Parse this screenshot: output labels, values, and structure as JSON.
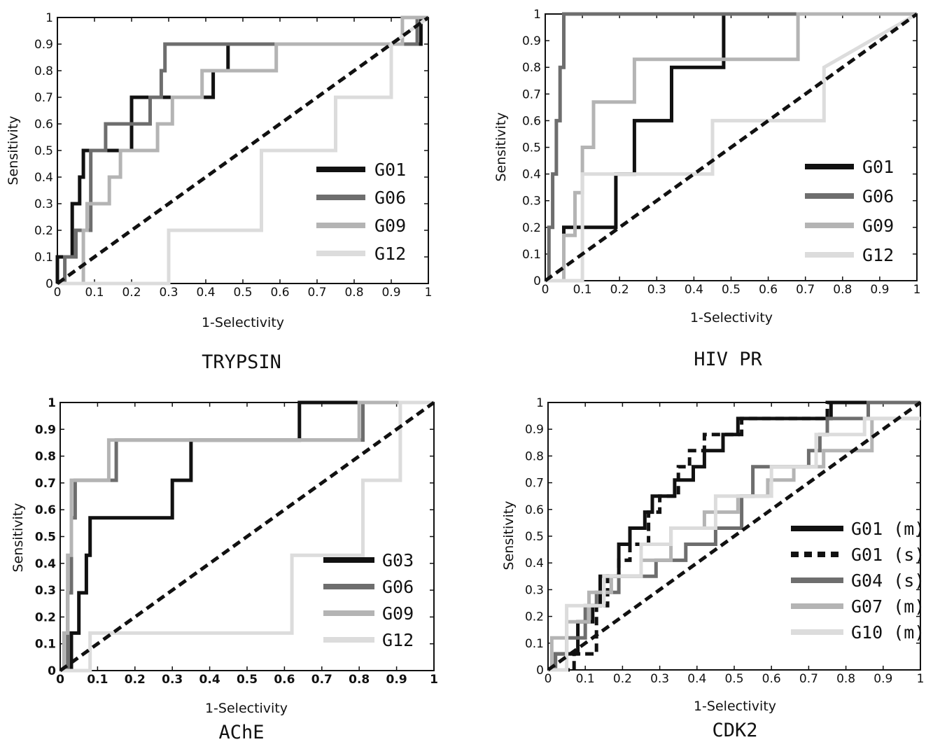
{
  "figure": {
    "background": "#ffffff",
    "line_colors": {
      "black": "#111111",
      "dark_gray": "#6e6e6e",
      "light_gray": "#b4b4b4",
      "faint_gray": "#dcdcdc"
    }
  },
  "chart_data": [
    {
      "type": "line",
      "caption": "TRYPSIN",
      "xlabel": "1-Selectivity",
      "ylabel": "Sensitivity",
      "xlim": [
        0,
        1
      ],
      "ylim": [
        0,
        1
      ],
      "xticks": [
        "0",
        "0.1",
        "0.2",
        "0.3",
        "0.4",
        "0.5",
        "0.6",
        "0.7",
        "0.8",
        "0.9",
        "1"
      ],
      "yticks": [
        "0",
        "0.1",
        "0.2",
        "0.3",
        "0.4",
        "0.5",
        "0.6",
        "0.7",
        "0.8",
        "0.9",
        "1"
      ],
      "grid": false,
      "legend_position": "lower-right",
      "series": [
        {
          "name": "G01",
          "color": "#111111",
          "dash": false,
          "x": [
            0,
            0,
            0.04,
            0.04,
            0.06,
            0.06,
            0.07,
            0.07,
            0.2,
            0.2,
            0.29,
            0.29,
            0.42,
            0.42,
            0.46,
            0.46,
            0.98,
            0.98,
            1
          ],
          "y": [
            0,
            0.1,
            0.1,
            0.3,
            0.3,
            0.4,
            0.4,
            0.5,
            0.5,
            0.7,
            0.7,
            0.7,
            0.7,
            0.8,
            0.8,
            0.9,
            0.9,
            1,
            1
          ]
        },
        {
          "name": "G06",
          "color": "#6e6e6e",
          "dash": false,
          "x": [
            0,
            0.02,
            0.02,
            0.05,
            0.05,
            0.09,
            0.09,
            0.13,
            0.13,
            0.25,
            0.25,
            0.28,
            0.28,
            0.29,
            0.29,
            0.97,
            0.97,
            1
          ],
          "y": [
            0,
            0,
            0.1,
            0.1,
            0.2,
            0.2,
            0.5,
            0.5,
            0.6,
            0.6,
            0.7,
            0.7,
            0.8,
            0.8,
            0.9,
            0.9,
            1,
            1
          ]
        },
        {
          "name": "G09",
          "color": "#b4b4b4",
          "dash": false,
          "x": [
            0,
            0.07,
            0.07,
            0.08,
            0.08,
            0.14,
            0.14,
            0.17,
            0.17,
            0.27,
            0.27,
            0.31,
            0.31,
            0.39,
            0.39,
            0.45,
            0.45,
            0.59,
            0.59,
            0.93,
            0.93,
            1
          ],
          "y": [
            0,
            0,
            0.2,
            0.2,
            0.3,
            0.3,
            0.4,
            0.4,
            0.5,
            0.5,
            0.6,
            0.6,
            0.7,
            0.7,
            0.8,
            0.8,
            0.8,
            0.8,
            0.9,
            0.9,
            1,
            1
          ]
        },
        {
          "name": "G12",
          "color": "#dcdcdc",
          "dash": false,
          "x": [
            0,
            0.3,
            0.3,
            0.55,
            0.55,
            0.75,
            0.75,
            0.9,
            0.9,
            1
          ],
          "y": [
            0,
            0,
            0.2,
            0.2,
            0.5,
            0.5,
            0.7,
            0.7,
            0.9,
            1
          ]
        },
        {
          "name": "",
          "color": "#111111",
          "dash": true,
          "x": [
            0,
            1
          ],
          "y": [
            0,
            1
          ]
        }
      ]
    },
    {
      "type": "line",
      "caption": "HIV PR",
      "xlabel": "1-Selectivity",
      "ylabel": "Sensitivity",
      "xlim": [
        0,
        1
      ],
      "ylim": [
        0,
        1
      ],
      "xticks": [
        "0",
        "0.1",
        "0.2",
        "0.3",
        "0.4",
        "0.5",
        "0.6",
        "0.7",
        "0.8",
        "0.9",
        "1"
      ],
      "yticks": [
        "0",
        "0.1",
        "0.2",
        "0.3",
        "0.4",
        "0.5",
        "0.6",
        "0.7",
        "0.8",
        "0.9",
        "1"
      ],
      "grid": false,
      "legend_position": "lower-right",
      "series": [
        {
          "name": "G01",
          "color": "#111111",
          "dash": false,
          "x": [
            0,
            0.05,
            0.05,
            0.19,
            0.19,
            0.24,
            0.24,
            0.34,
            0.34,
            0.48,
            0.48,
            1
          ],
          "y": [
            0,
            0,
            0.2,
            0.2,
            0.4,
            0.4,
            0.6,
            0.6,
            0.8,
            0.8,
            1,
            1
          ]
        },
        {
          "name": "G06",
          "color": "#6e6e6e",
          "dash": false,
          "x": [
            0,
            0.01,
            0.01,
            0.02,
            0.02,
            0.03,
            0.03,
            0.04,
            0.04,
            0.05,
            0.05,
            1
          ],
          "y": [
            0,
            0,
            0.2,
            0.2,
            0.4,
            0.4,
            0.6,
            0.6,
            0.8,
            0.8,
            1,
            1
          ]
        },
        {
          "name": "G09",
          "color": "#b4b4b4",
          "dash": false,
          "x": [
            0,
            0.05,
            0.05,
            0.08,
            0.08,
            0.1,
            0.1,
            0.13,
            0.13,
            0.24,
            0.24,
            0.35,
            0.35,
            0.68,
            0.68,
            1
          ],
          "y": [
            0,
            0,
            0.17,
            0.17,
            0.33,
            0.33,
            0.5,
            0.5,
            0.67,
            0.67,
            0.83,
            0.83,
            0.83,
            0.83,
            1,
            1
          ]
        },
        {
          "name": "G12",
          "color": "#dcdcdc",
          "dash": false,
          "x": [
            0,
            0.1,
            0.1,
            0.45,
            0.45,
            0.75,
            0.75,
            1
          ],
          "y": [
            0,
            0,
            0.4,
            0.4,
            0.6,
            0.6,
            0.8,
            1
          ]
        },
        {
          "name": "",
          "color": "#111111",
          "dash": true,
          "x": [
            0,
            1
          ],
          "y": [
            0,
            1
          ]
        }
      ]
    },
    {
      "type": "line",
      "caption": "AChE",
      "xlabel": "1-Selectivity",
      "ylabel": "Sensitivity",
      "xlim": [
        0,
        1
      ],
      "ylim": [
        0,
        1
      ],
      "xticks": [
        "0",
        "0.1",
        "0.2",
        "0.3",
        "0.4",
        "0.5",
        "0.6",
        "0.7",
        "0.8",
        "0.9",
        "1"
      ],
      "yticks": [
        "0",
        "0.1",
        "0.2",
        "0.3",
        "0.4",
        "0.5",
        "0.6",
        "0.7",
        "0.8",
        "0.9",
        "1"
      ],
      "grid": false,
      "legend_position": "lower-right",
      "series": [
        {
          "name": "G03",
          "color": "#111111",
          "dash": false,
          "x": [
            0,
            0.03,
            0.03,
            0.05,
            0.05,
            0.07,
            0.07,
            0.08,
            0.08,
            0.11,
            0.11,
            0.3,
            0.3,
            0.35,
            0.35,
            0.49,
            0.49,
            0.64,
            0.64,
            1
          ],
          "y": [
            0,
            0,
            0.14,
            0.14,
            0.29,
            0.29,
            0.43,
            0.43,
            0.57,
            0.57,
            0.57,
            0.57,
            0.71,
            0.71,
            0.86,
            0.86,
            0.86,
            0.86,
            1,
            1
          ]
        },
        {
          "name": "G06",
          "color": "#6e6e6e",
          "dash": false,
          "x": [
            0,
            0.02,
            0.02,
            0.03,
            0.03,
            0.04,
            0.04,
            0.15,
            0.15,
            0.81,
            0.81,
            1
          ],
          "y": [
            0,
            0,
            0.29,
            0.29,
            0.57,
            0.57,
            0.71,
            0.71,
            0.86,
            0.86,
            1,
            1
          ]
        },
        {
          "name": "G09",
          "color": "#b4b4b4",
          "dash": false,
          "x": [
            0,
            0.01,
            0.01,
            0.02,
            0.02,
            0.03,
            0.03,
            0.13,
            0.13,
            0.39,
            0.39,
            0.8,
            0.8,
            1
          ],
          "y": [
            0,
            0,
            0.14,
            0.14,
            0.43,
            0.43,
            0.71,
            0.71,
            0.86,
            0.86,
            0.86,
            0.86,
            1,
            1
          ]
        },
        {
          "name": "G12",
          "color": "#dcdcdc",
          "dash": false,
          "x": [
            0,
            0.08,
            0.08,
            0.62,
            0.62,
            0.81,
            0.81,
            0.91,
            0.91,
            1
          ],
          "y": [
            0,
            0,
            0.14,
            0.14,
            0.43,
            0.43,
            0.71,
            0.71,
            1,
            1
          ]
        },
        {
          "name": "",
          "color": "#111111",
          "dash": true,
          "x": [
            0,
            1
          ],
          "y": [
            0,
            1
          ]
        }
      ]
    },
    {
      "type": "line",
      "caption": "CDK2",
      "xlabel": "1-Selectivity",
      "ylabel": "Sensitivity",
      "xlim": [
        0,
        1
      ],
      "ylim": [
        0,
        1
      ],
      "xticks": [
        "0",
        "0.1",
        "0.2",
        "0.3",
        "0.4",
        "0.5",
        "0.6",
        "0.7",
        "0.8",
        "0.9",
        "1"
      ],
      "yticks": [
        "0",
        "0.1",
        "0.2",
        "0.3",
        "0.4",
        "0.5",
        "0.6",
        "0.7",
        "0.8",
        "0.9",
        "1"
      ],
      "grid": false,
      "legend_position": "lower-right",
      "series": [
        {
          "name": "G01 (m)",
          "color": "#111111",
          "dash": false,
          "x": [
            0,
            0.02,
            0.02,
            0.08,
            0.08,
            0.12,
            0.12,
            0.14,
            0.14,
            0.19,
            0.19,
            0.22,
            0.22,
            0.26,
            0.26,
            0.28,
            0.28,
            0.34,
            0.34,
            0.39,
            0.39,
            0.42,
            0.42,
            0.47,
            0.47,
            0.51,
            0.51,
            0.56,
            0.56,
            0.67,
            0.67,
            0.76,
            0.76,
            1
          ],
          "y": [
            0,
            0,
            0.06,
            0.06,
            0.18,
            0.18,
            0.24,
            0.24,
            0.35,
            0.35,
            0.47,
            0.47,
            0.53,
            0.53,
            0.59,
            0.59,
            0.65,
            0.65,
            0.71,
            0.71,
            0.76,
            0.76,
            0.82,
            0.82,
            0.88,
            0.88,
            0.94,
            0.94,
            0.94,
            0.94,
            0.94,
            0.94,
            1,
            1
          ]
        },
        {
          "name": "G01 (s)",
          "color": "#111111",
          "dash": true,
          "x": [
            0,
            0.07,
            0.07,
            0.13,
            0.13,
            0.16,
            0.16,
            0.19,
            0.19,
            0.22,
            0.22,
            0.27,
            0.27,
            0.3,
            0.3,
            0.35,
            0.35,
            0.38,
            0.38,
            0.42,
            0.42,
            0.52,
            0.52,
            0.61,
            0.61,
            0.75,
            0.75,
            1
          ],
          "y": [
            0,
            0,
            0.06,
            0.06,
            0.24,
            0.24,
            0.35,
            0.35,
            0.41,
            0.41,
            0.47,
            0.47,
            0.59,
            0.59,
            0.65,
            0.65,
            0.76,
            0.76,
            0.82,
            0.82,
            0.88,
            0.88,
            0.94,
            0.94,
            0.94,
            0.94,
            1,
            1
          ]
        },
        {
          "name": "G04 (s)",
          "color": "#6e6e6e",
          "dash": false,
          "x": [
            0,
            0.02,
            0.02,
            0.05,
            0.05,
            0.1,
            0.1,
            0.13,
            0.13,
            0.19,
            0.19,
            0.29,
            0.29,
            0.37,
            0.37,
            0.45,
            0.45,
            0.52,
            0.52,
            0.55,
            0.55,
            0.7,
            0.7,
            0.73,
            0.73,
            0.75,
            0.75,
            0.86,
            0.86,
            1
          ],
          "y": [
            0,
            0,
            0.06,
            0.06,
            0.12,
            0.12,
            0.24,
            0.24,
            0.29,
            0.29,
            0.35,
            0.35,
            0.41,
            0.41,
            0.47,
            0.47,
            0.53,
            0.53,
            0.65,
            0.65,
            0.76,
            0.76,
            0.82,
            0.82,
            0.88,
            0.88,
            0.94,
            0.94,
            1,
            1
          ]
        },
        {
          "name": "G07 (m)",
          "color": "#b4b4b4",
          "dash": false,
          "x": [
            0,
            0.01,
            0.01,
            0.05,
            0.05,
            0.11,
            0.11,
            0.17,
            0.17,
            0.25,
            0.25,
            0.33,
            0.33,
            0.42,
            0.42,
            0.51,
            0.51,
            0.59,
            0.59,
            0.66,
            0.66,
            0.74,
            0.74,
            0.87,
            0.87,
            1
          ],
          "y": [
            0,
            0,
            0.12,
            0.12,
            0.18,
            0.18,
            0.29,
            0.29,
            0.35,
            0.35,
            0.41,
            0.41,
            0.53,
            0.53,
            0.59,
            0.59,
            0.65,
            0.65,
            0.71,
            0.71,
            0.76,
            0.76,
            0.82,
            0.82,
            0.94,
            0.94
          ]
        },
        {
          "name": "G10 (m)",
          "color": "#dcdcdc",
          "dash": false,
          "x": [
            0,
            0.05,
            0.05,
            0.15,
            0.15,
            0.25,
            0.25,
            0.33,
            0.33,
            0.45,
            0.45,
            0.6,
            0.6,
            0.72,
            0.72,
            0.85,
            0.85,
            1
          ],
          "y": [
            0,
            0,
            0.24,
            0.24,
            0.35,
            0.35,
            0.47,
            0.47,
            0.53,
            0.53,
            0.65,
            0.65,
            0.76,
            0.76,
            0.88,
            0.88,
            0.94,
            0.94
          ]
        },
        {
          "name": "",
          "color": "#111111",
          "dash": true,
          "x": [
            0,
            1
          ],
          "y": [
            0,
            1
          ]
        }
      ]
    }
  ]
}
